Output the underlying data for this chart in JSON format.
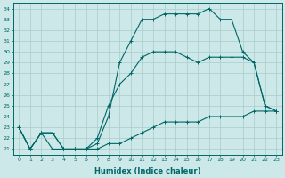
{
  "xlabel": "Humidex (Indice chaleur)",
  "ylabel": "",
  "bg_color": "#cce8e8",
  "grid_color": "#aacccc",
  "line_color": "#006666",
  "xlim": [
    -0.5,
    23.5
  ],
  "ylim": [
    20.5,
    34.5
  ],
  "xticks": [
    0,
    1,
    2,
    3,
    4,
    5,
    6,
    7,
    8,
    9,
    10,
    11,
    12,
    13,
    14,
    15,
    16,
    17,
    18,
    19,
    20,
    21,
    22,
    23
  ],
  "yticks": [
    21,
    22,
    23,
    24,
    25,
    26,
    27,
    28,
    29,
    30,
    31,
    32,
    33,
    34
  ],
  "series1_x": [
    0,
    1,
    2,
    3,
    4,
    5,
    6,
    7,
    8,
    9,
    10,
    11,
    12,
    13,
    14,
    15,
    16,
    17,
    18,
    19,
    20,
    21,
    22,
    23
  ],
  "series1_y": [
    23.0,
    21.0,
    22.5,
    21.0,
    21.0,
    21.0,
    21.0,
    21.0,
    21.5,
    21.5,
    22.0,
    22.5,
    23.0,
    23.5,
    23.5,
    23.5,
    23.5,
    24.0,
    24.0,
    24.0,
    24.0,
    24.5,
    24.5,
    24.5
  ],
  "series2_x": [
    0,
    1,
    2,
    3,
    4,
    5,
    6,
    7,
    8,
    9,
    10,
    11,
    12,
    13,
    14,
    15,
    16,
    17,
    18,
    19,
    20,
    21,
    22,
    23
  ],
  "series2_y": [
    23.0,
    21.0,
    22.5,
    22.5,
    21.0,
    21.0,
    21.0,
    21.5,
    24.0,
    29.0,
    31.0,
    33.0,
    33.0,
    33.5,
    33.5,
    33.5,
    33.5,
    34.0,
    33.0,
    33.0,
    30.0,
    29.0,
    25.0,
    24.5
  ],
  "series3_x": [
    0,
    1,
    2,
    3,
    4,
    5,
    6,
    7,
    8,
    9,
    10,
    11,
    12,
    13,
    14,
    15,
    16,
    17,
    18,
    19,
    20,
    21,
    22,
    23
  ],
  "series3_y": [
    23.0,
    21.0,
    22.5,
    22.5,
    21.0,
    21.0,
    21.0,
    22.0,
    25.0,
    27.0,
    28.0,
    29.5,
    30.0,
    30.0,
    30.0,
    29.5,
    29.0,
    29.5,
    29.5,
    29.5,
    29.5,
    29.0,
    25.0,
    24.5
  ]
}
